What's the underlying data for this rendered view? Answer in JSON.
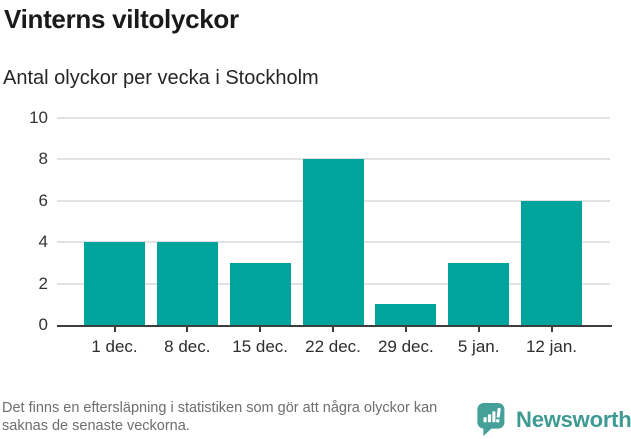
{
  "header": {
    "title": "Vinterns viltolyckor",
    "subtitle": "Antal olyckor per vecka i Stockholm"
  },
  "chart_data": {
    "type": "bar",
    "title": "Vinterns viltolyckor",
    "subtitle": "Antal olyckor per vecka i Stockholm",
    "categories": [
      "1 dec.",
      "8 dec.",
      "15 dec.",
      "22 dec.",
      "29 dec.",
      "5 jan.",
      "12 jan."
    ],
    "values": [
      4,
      4,
      3,
      8,
      1,
      3,
      6
    ],
    "xlabel": "",
    "ylabel": "",
    "ylim": [
      0,
      10
    ],
    "yticks": [
      0,
      2,
      4,
      6,
      8,
      10
    ],
    "grid": true,
    "legend": "none",
    "bar_color": "#00a49c"
  },
  "footer": {
    "note": "Det finns en eftersläpning i statistiken som gör att några olyckor kan saknas de senaste veckorna.",
    "brand_name": "Newsworthy",
    "brand_color": "#3f9a93",
    "brand_icon": "bar-chart-speech-bubble-icon"
  },
  "colors": {
    "accent_teal": "#00a49c",
    "logo_teal": "#44a098",
    "gridline": "#e2e2e2",
    "axis": "#3d3d3d",
    "text_dark": "#1a1a1a",
    "text_muted": "#6e6e6e"
  }
}
